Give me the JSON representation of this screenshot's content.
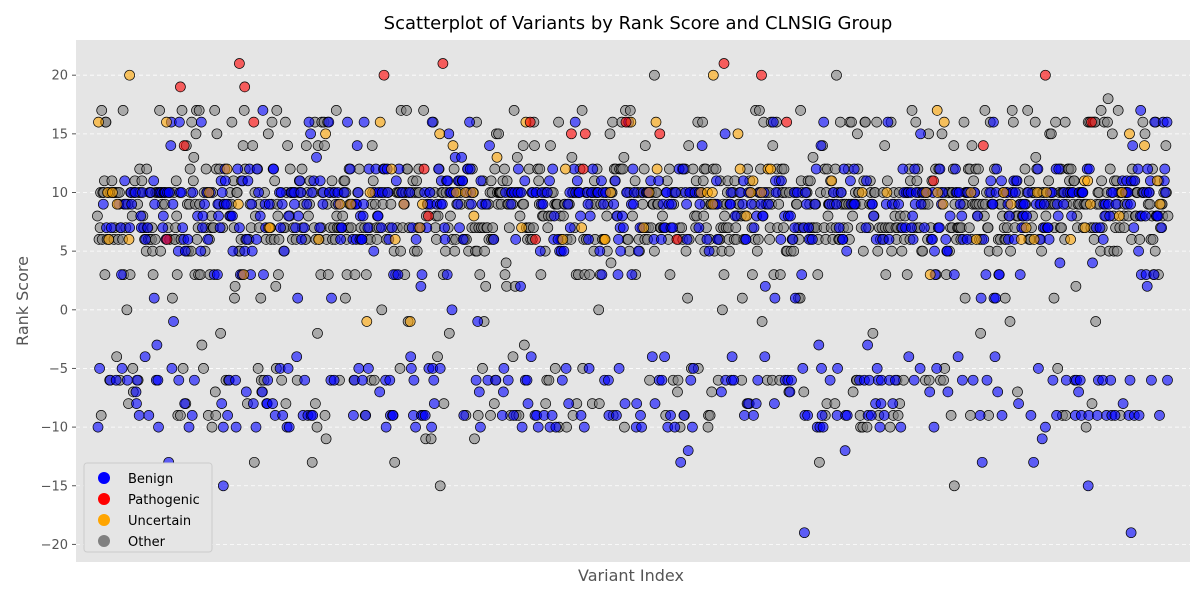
{
  "chart_data": {
    "type": "scatter",
    "title": "Scatterplot of Variants by Rank Score and CLNSIG Group",
    "xlabel": "Variant Index",
    "ylabel": "Rank Score",
    "xlim": [
      -40,
      2040
    ],
    "ylim": [
      -21.5,
      23
    ],
    "xticks_visible": false,
    "yticks": [
      -20,
      -15,
      -10,
      -5,
      0,
      5,
      10,
      15,
      20
    ],
    "ytick_labels": [
      "−20",
      "−15",
      "−10",
      "−5",
      "0",
      "5",
      "10",
      "15",
      "20"
    ],
    "grid": true,
    "legend_position": "lower-left",
    "n_variants": 2000,
    "series": [
      {
        "name": "Benign",
        "color": "#0000ff",
        "share": 0.33,
        "typical_scores": [
          -19,
          -15,
          -13,
          -12,
          -11,
          -10,
          -9,
          -8,
          -7,
          -6,
          -5,
          -4,
          -3,
          -2,
          -1,
          0,
          1,
          2,
          3,
          5,
          6,
          7,
          8,
          9,
          10,
          11,
          12,
          14
        ]
      },
      {
        "name": "Pathogenic",
        "color": "#ff0000",
        "share": 0.012,
        "typical_scores": [
          6,
          13,
          14,
          16,
          17,
          18,
          19,
          20,
          21
        ]
      },
      {
        "name": "Uncertain",
        "color": "#ffa500",
        "share": 0.045,
        "typical_scores": [
          -1,
          2,
          3,
          5,
          6,
          7,
          8,
          9,
          10,
          11,
          12,
          13,
          14,
          15,
          16,
          17,
          18,
          20
        ]
      },
      {
        "name": "Other",
        "color": "#808080",
        "share": 0.613,
        "typical_scores": [
          -15,
          -13,
          -12,
          -10,
          -9,
          -8,
          -7,
          -6,
          -5,
          -4,
          -3,
          -2,
          -1,
          0,
          1,
          2,
          3,
          4,
          5,
          6,
          7,
          8,
          9,
          10,
          11,
          12,
          13,
          14,
          15,
          16,
          17,
          18,
          20
        ]
      }
    ],
    "highlighted_points": [
      {
        "series": "Benign",
        "x": 1320,
        "y": -19
      },
      {
        "series": "Benign",
        "x": 1930,
        "y": -19
      },
      {
        "series": "Other",
        "x": 1600,
        "y": -15
      },
      {
        "series": "Other",
        "x": 640,
        "y": -15
      },
      {
        "series": "Benign",
        "x": 235,
        "y": -15
      },
      {
        "series": "Benign",
        "x": 1850,
        "y": -15
      },
      {
        "series": "Pathogenic",
        "x": 265,
        "y": 21
      },
      {
        "series": "Pathogenic",
        "x": 645,
        "y": 21
      },
      {
        "series": "Pathogenic",
        "x": 1170,
        "y": 21
      },
      {
        "series": "Other",
        "x": 1040,
        "y": 20
      },
      {
        "series": "Other",
        "x": 1380,
        "y": 20
      },
      {
        "series": "Uncertain",
        "x": 60,
        "y": 20
      },
      {
        "series": "Uncertain",
        "x": 1150,
        "y": 20
      },
      {
        "series": "Pathogenic",
        "x": 1240,
        "y": 20
      },
      {
        "series": "Pathogenic",
        "x": 1770,
        "y": 20
      },
      {
        "series": "Pathogenic",
        "x": 155,
        "y": 19
      },
      {
        "series": "Pathogenic",
        "x": 275,
        "y": 19
      }
    ]
  }
}
